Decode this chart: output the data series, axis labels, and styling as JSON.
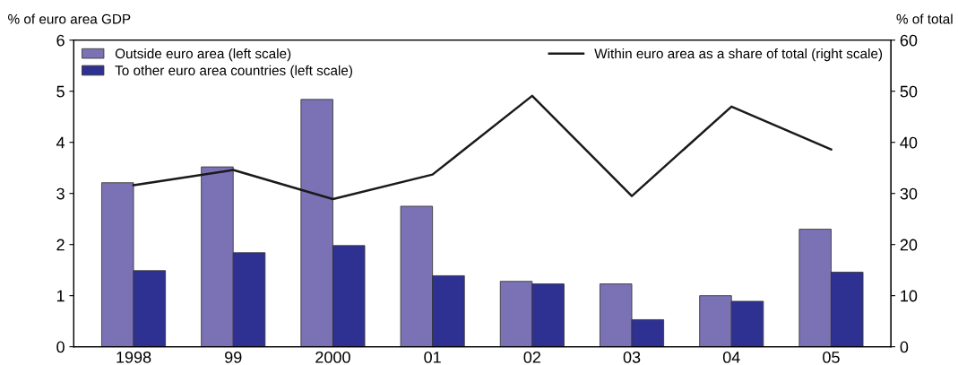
{
  "chart_data": {
    "type": "bar",
    "categories": [
      "1998",
      "99",
      "2000",
      "01",
      "02",
      "03",
      "04",
      "05"
    ],
    "series": [
      {
        "name": "Outside euro area (left scale)",
        "color": "#7b72b5",
        "values": [
          3.21,
          3.52,
          4.84,
          2.75,
          1.28,
          1.23,
          1.0,
          2.3
        ]
      },
      {
        "name": "To other euro area countries (left scale)",
        "color": "#2e3192",
        "values": [
          1.49,
          1.84,
          1.98,
          1.39,
          1.23,
          0.53,
          0.89,
          1.46
        ]
      },
      {
        "name": "Within euro area as a share of total (right scale)",
        "color": "#1a1a1a",
        "type": "line",
        "axis": "y2",
        "values": [
          31.6,
          34.6,
          28.9,
          33.7,
          49.1,
          29.5,
          47.0,
          38.6
        ]
      }
    ],
    "ylabel": "% of euro area GDP",
    "y2label": "% of total",
    "ylim": [
      0,
      6
    ],
    "yticks": [
      0,
      1,
      2,
      3,
      4,
      5,
      6
    ],
    "y2lim": [
      0,
      60
    ],
    "y2ticks": [
      0,
      10,
      20,
      30,
      40,
      50,
      60
    ],
    "grid": false,
    "legend": "top",
    "marker": "none",
    "line_style": "solid"
  }
}
